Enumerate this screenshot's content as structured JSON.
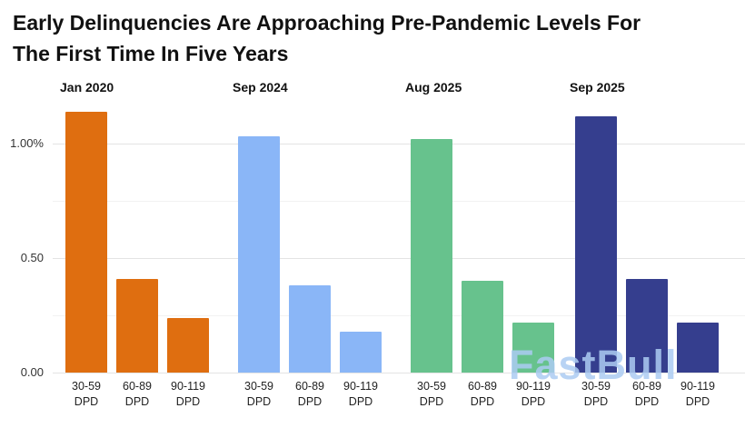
{
  "title": {
    "line1": "Early Delinquencies Are Approaching Pre-Pandemic Levels For",
    "line2": "The First Time In Five Years"
  },
  "watermark": "FastBull",
  "chart_data": {
    "type": "bar",
    "title": "Early Delinquencies Are Approaching Pre-Pandemic Levels For The First Time In Five Years",
    "layout": "faceted by date, one panel per date, shared y-axis",
    "categories": [
      "30-59 DPD",
      "60-89 DPD",
      "90-119 DPD"
    ],
    "series": [
      {
        "name": "Jan 2020",
        "color": "#df6e10",
        "values": [
          1.14,
          0.41,
          0.24
        ]
      },
      {
        "name": "Sep 2024",
        "color": "#8ab6f7",
        "values": [
          1.03,
          0.38,
          0.18
        ]
      },
      {
        "name": "Aug 2025",
        "color": "#67c28d",
        "values": [
          1.02,
          0.4,
          0.22
        ]
      },
      {
        "name": "Sep 2025",
        "color": "#353e8e",
        "values": [
          1.12,
          0.41,
          0.22
        ]
      }
    ],
    "xlabel": "",
    "ylabel": "",
    "ylim": [
      0,
      1.17
    ],
    "yticks": [
      {
        "value": 0.0,
        "label": "0.00"
      },
      {
        "value": 0.5,
        "label": "0.50"
      },
      {
        "value": 1.0,
        "label": "1.00%"
      }
    ],
    "gridlines": [
      0,
      0.25,
      0.5,
      0.75,
      1.0
    ],
    "grid": true,
    "legend": "none"
  }
}
